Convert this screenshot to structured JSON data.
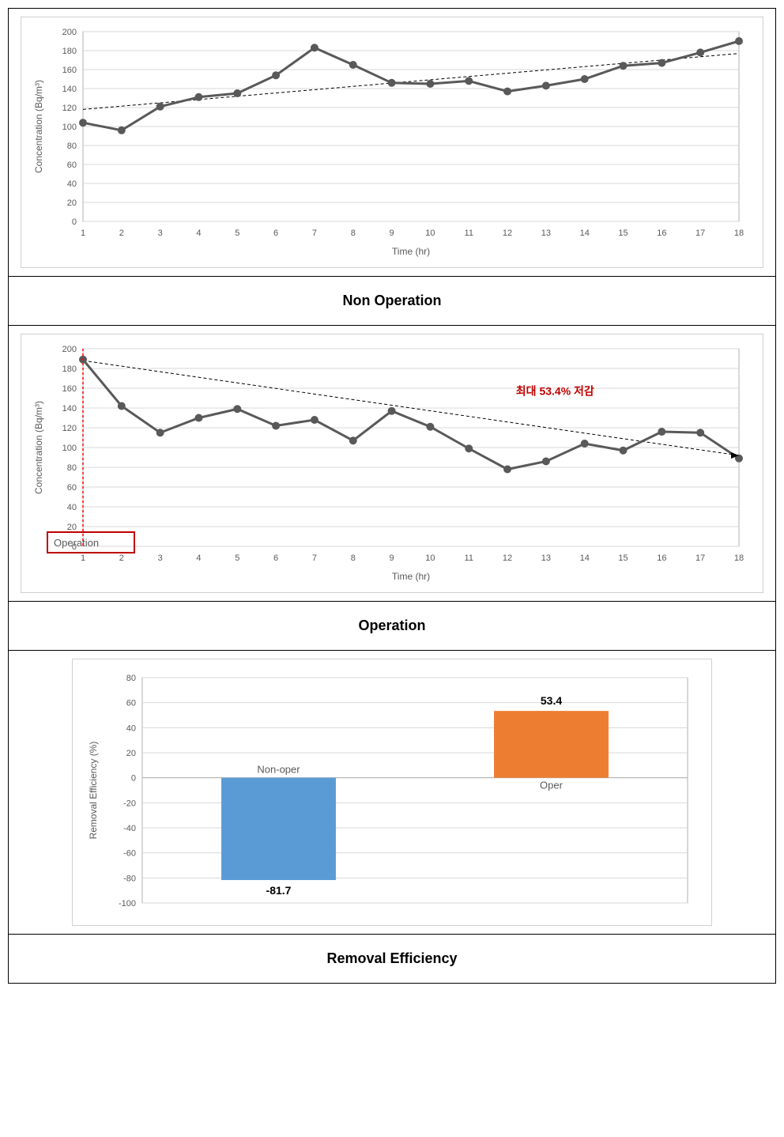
{
  "panel1": {
    "type": "line",
    "caption": "Non Operation",
    "ylabel": "Concentration (Bq/m³)",
    "xlabel": "Time (hr)",
    "x": [
      1,
      2,
      3,
      4,
      5,
      6,
      7,
      8,
      9,
      10,
      11,
      12,
      13,
      14,
      15,
      16,
      17,
      18
    ],
    "y": [
      104,
      96,
      121,
      131,
      135,
      154,
      183,
      165,
      146,
      145,
      148,
      137,
      143,
      150,
      164,
      167,
      178,
      190
    ],
    "ylim": [
      0,
      200
    ],
    "ytick_step": 20,
    "trend": {
      "y_start": 118,
      "y_end": 177
    },
    "grid_color": "#d9d9d9",
    "line_color": "#595959",
    "marker_color": "#595959",
    "background_color": "#ffffff"
  },
  "panel2": {
    "type": "line",
    "caption": "Operation",
    "ylabel": "Concentration (Bq/m³)",
    "xlabel": "Time (hr)",
    "x": [
      1,
      2,
      3,
      4,
      5,
      6,
      7,
      8,
      9,
      10,
      11,
      12,
      13,
      14,
      15,
      16,
      17,
      18
    ],
    "y": [
      189,
      142,
      115,
      130,
      139,
      122,
      128,
      107,
      137,
      121,
      99,
      78,
      86,
      104,
      97,
      116,
      115,
      89
    ],
    "ylim": [
      0,
      200
    ],
    "ytick_step": 20,
    "trend": {
      "y_start": 188,
      "y_end": 92
    },
    "annotation": "최대 53.4% 저감",
    "operation_label": "Operation",
    "grid_color": "#d9d9d9",
    "line_color": "#595959",
    "marker_color": "#595959",
    "background_color": "#ffffff"
  },
  "panel3": {
    "type": "bar",
    "caption": "Removal Efficiency",
    "ylabel": "Removal Efficiency (%)",
    "categories": [
      "Non-oper",
      "Oper"
    ],
    "values": [
      -81.7,
      53.4
    ],
    "value_labels": [
      "-81.7",
      "53.4"
    ],
    "bar_colors": [
      "#5b9bd5",
      "#ed7d31"
    ],
    "ylim": [
      -100,
      80
    ],
    "ytick_step": 20,
    "grid_color": "#d9d9d9",
    "background_color": "#ffffff"
  }
}
